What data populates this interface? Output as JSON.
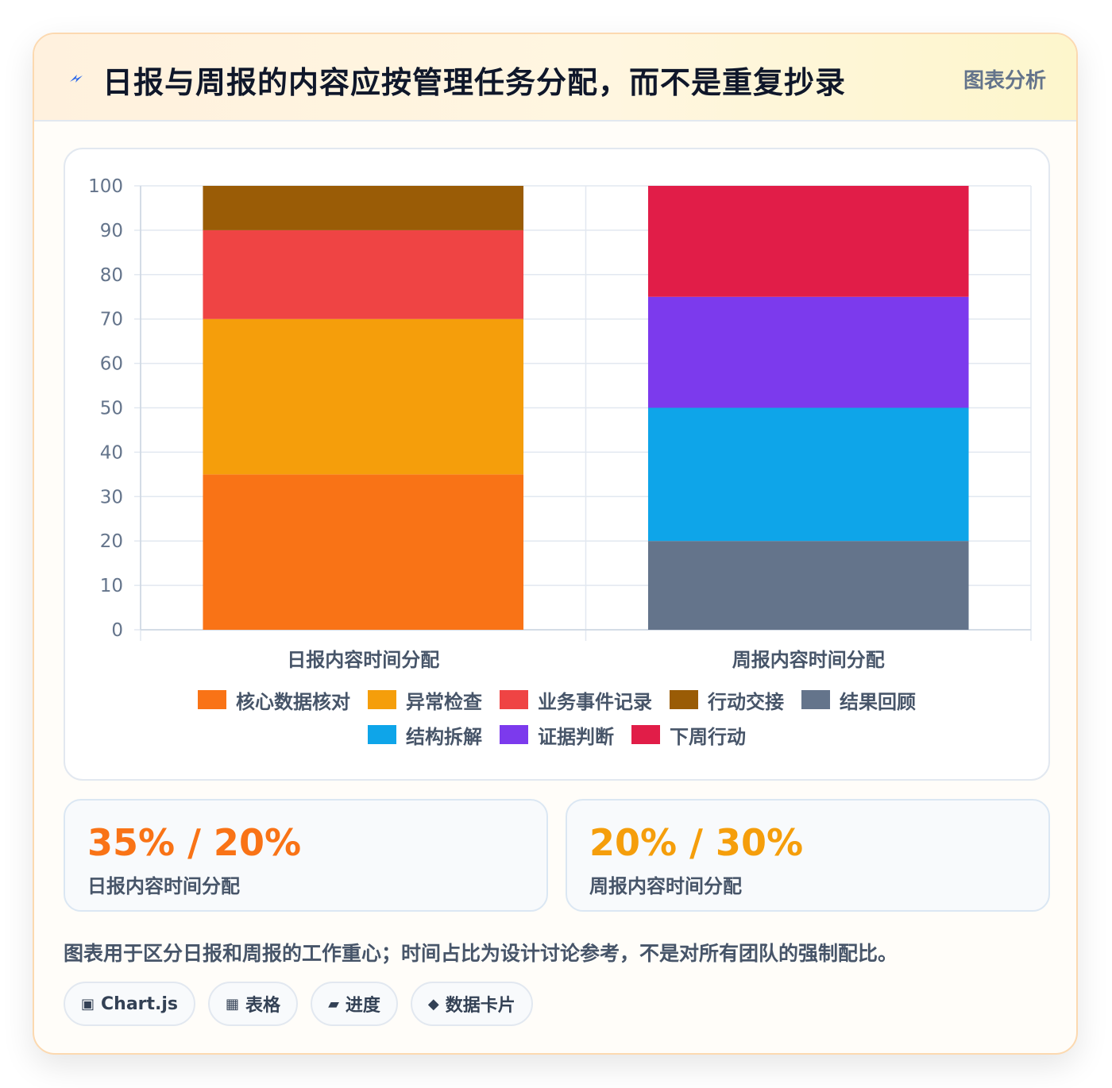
{
  "header": {
    "icon": "lightning-icon",
    "title": "日报与周报的内容应按管理任务分配，而不是重复抄录",
    "tag": "图表分析"
  },
  "chart_data": {
    "type": "bar",
    "stacked": true,
    "categories": [
      "日报内容时间分配",
      "周报内容时间分配"
    ],
    "ylim": [
      0,
      100
    ],
    "yticks": [
      0,
      10,
      20,
      30,
      40,
      50,
      60,
      70,
      80,
      90,
      100
    ],
    "grid": true,
    "legend_position": "bottom",
    "series": [
      {
        "name": "核心数据核对",
        "color": "#f97316",
        "values": [
          35,
          0
        ]
      },
      {
        "name": "异常检查",
        "color": "#f59e0b",
        "values": [
          35,
          0
        ]
      },
      {
        "name": "业务事件记录",
        "color": "#ef4444",
        "values": [
          20,
          0
        ]
      },
      {
        "name": "行动交接",
        "color": "#9a5c06",
        "values": [
          10,
          0
        ]
      },
      {
        "name": "结果回顾",
        "color": "#64748b",
        "values": [
          0,
          20
        ]
      },
      {
        "name": "结构拆解",
        "color": "#0ea5e9",
        "values": [
          0,
          30
        ]
      },
      {
        "name": "证据判断",
        "color": "#7c3aed",
        "values": [
          0,
          25
        ]
      },
      {
        "name": "下周行动",
        "color": "#e11d48",
        "values": [
          0,
          25
        ]
      }
    ]
  },
  "stats": [
    {
      "value": "35% / 20%",
      "label": "日报内容时间分配",
      "color": "#f97316"
    },
    {
      "value": "20% / 30%",
      "label": "周报内容时间分配",
      "color": "#f59e0b"
    }
  ],
  "footnote": "图表用于区分日报和周报的工作重心；时间占比为设计讨论参考，不是对所有团队的强制配比。",
  "tags": [
    {
      "icon": "▣",
      "icon_name": "chart-icon",
      "label": "Chart.js"
    },
    {
      "icon": "▦",
      "icon_name": "table-icon",
      "label": "表格"
    },
    {
      "icon": "▰",
      "icon_name": "progress-icon",
      "label": "进度"
    },
    {
      "icon": "◆",
      "icon_name": "data-card-icon",
      "label": "数据卡片"
    }
  ]
}
